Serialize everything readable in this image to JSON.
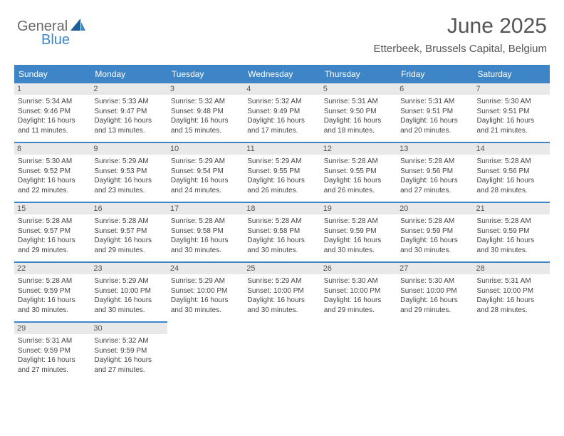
{
  "brand": {
    "part1": "General",
    "part2": "Blue"
  },
  "title": "June 2025",
  "location": "Etterbeek, Brussels Capital, Belgium",
  "colors": {
    "header_bg": "#3d85c6",
    "header_fg": "#ffffff",
    "daynum_bg": "#e9e9e9",
    "text": "#444444",
    "title": "#555555"
  },
  "weekdays": [
    "Sunday",
    "Monday",
    "Tuesday",
    "Wednesday",
    "Thursday",
    "Friday",
    "Saturday"
  ],
  "days": [
    {
      "n": "1",
      "sr": "5:34 AM",
      "ss": "9:46 PM",
      "dl": "16 hours and 11 minutes."
    },
    {
      "n": "2",
      "sr": "5:33 AM",
      "ss": "9:47 PM",
      "dl": "16 hours and 13 minutes."
    },
    {
      "n": "3",
      "sr": "5:32 AM",
      "ss": "9:48 PM",
      "dl": "16 hours and 15 minutes."
    },
    {
      "n": "4",
      "sr": "5:32 AM",
      "ss": "9:49 PM",
      "dl": "16 hours and 17 minutes."
    },
    {
      "n": "5",
      "sr": "5:31 AM",
      "ss": "9:50 PM",
      "dl": "16 hours and 18 minutes."
    },
    {
      "n": "6",
      "sr": "5:31 AM",
      "ss": "9:51 PM",
      "dl": "16 hours and 20 minutes."
    },
    {
      "n": "7",
      "sr": "5:30 AM",
      "ss": "9:51 PM",
      "dl": "16 hours and 21 minutes."
    },
    {
      "n": "8",
      "sr": "5:30 AM",
      "ss": "9:52 PM",
      "dl": "16 hours and 22 minutes."
    },
    {
      "n": "9",
      "sr": "5:29 AM",
      "ss": "9:53 PM",
      "dl": "16 hours and 23 minutes."
    },
    {
      "n": "10",
      "sr": "5:29 AM",
      "ss": "9:54 PM",
      "dl": "16 hours and 24 minutes."
    },
    {
      "n": "11",
      "sr": "5:29 AM",
      "ss": "9:55 PM",
      "dl": "16 hours and 26 minutes."
    },
    {
      "n": "12",
      "sr": "5:28 AM",
      "ss": "9:55 PM",
      "dl": "16 hours and 26 minutes."
    },
    {
      "n": "13",
      "sr": "5:28 AM",
      "ss": "9:56 PM",
      "dl": "16 hours and 27 minutes."
    },
    {
      "n": "14",
      "sr": "5:28 AM",
      "ss": "9:56 PM",
      "dl": "16 hours and 28 minutes."
    },
    {
      "n": "15",
      "sr": "5:28 AM",
      "ss": "9:57 PM",
      "dl": "16 hours and 29 minutes."
    },
    {
      "n": "16",
      "sr": "5:28 AM",
      "ss": "9:57 PM",
      "dl": "16 hours and 29 minutes."
    },
    {
      "n": "17",
      "sr": "5:28 AM",
      "ss": "9:58 PM",
      "dl": "16 hours and 30 minutes."
    },
    {
      "n": "18",
      "sr": "5:28 AM",
      "ss": "9:58 PM",
      "dl": "16 hours and 30 minutes."
    },
    {
      "n": "19",
      "sr": "5:28 AM",
      "ss": "9:59 PM",
      "dl": "16 hours and 30 minutes."
    },
    {
      "n": "20",
      "sr": "5:28 AM",
      "ss": "9:59 PM",
      "dl": "16 hours and 30 minutes."
    },
    {
      "n": "21",
      "sr": "5:28 AM",
      "ss": "9:59 PM",
      "dl": "16 hours and 30 minutes."
    },
    {
      "n": "22",
      "sr": "5:28 AM",
      "ss": "9:59 PM",
      "dl": "16 hours and 30 minutes."
    },
    {
      "n": "23",
      "sr": "5:29 AM",
      "ss": "10:00 PM",
      "dl": "16 hours and 30 minutes."
    },
    {
      "n": "24",
      "sr": "5:29 AM",
      "ss": "10:00 PM",
      "dl": "16 hours and 30 minutes."
    },
    {
      "n": "25",
      "sr": "5:29 AM",
      "ss": "10:00 PM",
      "dl": "16 hours and 30 minutes."
    },
    {
      "n": "26",
      "sr": "5:30 AM",
      "ss": "10:00 PM",
      "dl": "16 hours and 29 minutes."
    },
    {
      "n": "27",
      "sr": "5:30 AM",
      "ss": "10:00 PM",
      "dl": "16 hours and 29 minutes."
    },
    {
      "n": "28",
      "sr": "5:31 AM",
      "ss": "10:00 PM",
      "dl": "16 hours and 28 minutes."
    },
    {
      "n": "29",
      "sr": "5:31 AM",
      "ss": "9:59 PM",
      "dl": "16 hours and 27 minutes."
    },
    {
      "n": "30",
      "sr": "5:32 AM",
      "ss": "9:59 PM",
      "dl": "16 hours and 27 minutes."
    }
  ],
  "labels": {
    "sunrise": "Sunrise:",
    "sunset": "Sunset:",
    "daylight": "Daylight:"
  },
  "layout": {
    "start_weekday": 0,
    "rows": 5,
    "cols": 7
  }
}
